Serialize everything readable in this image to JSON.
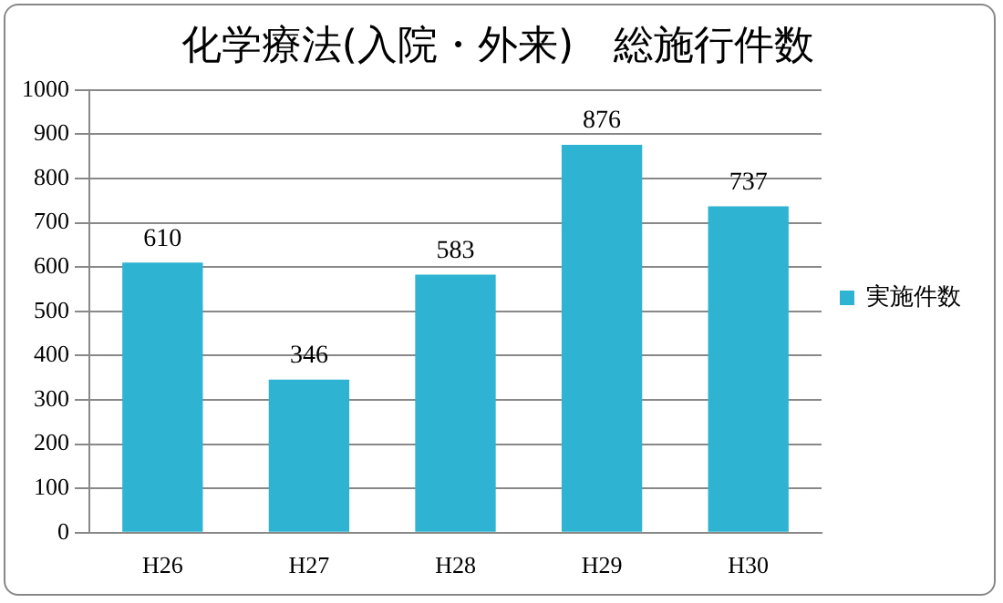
{
  "chart_data": {
    "type": "bar",
    "title": "化学療法(入院・外来)　総施行件数",
    "categories": [
      "H26",
      "H27",
      "H28",
      "H29",
      "H30"
    ],
    "series": [
      {
        "name": "実施件数",
        "color": "#2eb4d2",
        "values": [
          610,
          346,
          583,
          876,
          737
        ]
      }
    ],
    "ylim": [
      0,
      1000
    ],
    "yticks": [
      0,
      100,
      200,
      300,
      400,
      500,
      600,
      700,
      800,
      900,
      1000
    ],
    "grid": "y",
    "legend": "right",
    "data_labels": true
  }
}
